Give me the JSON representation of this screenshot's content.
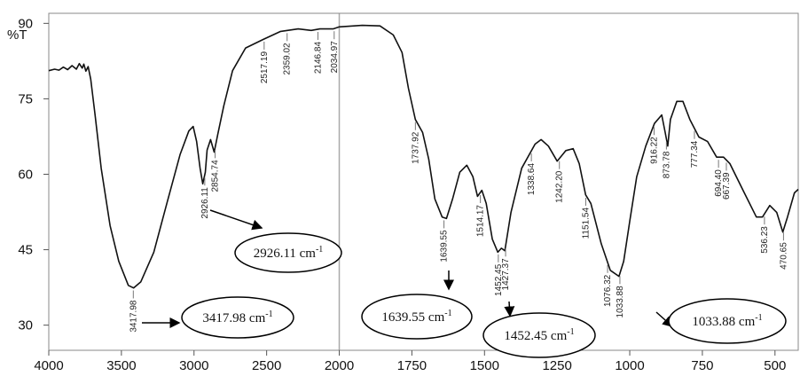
{
  "chart_data": {
    "type": "line",
    "y_label": "%T",
    "xlim": [
      4000,
      420
    ],
    "ylim": [
      25,
      92
    ],
    "xticks": [
      4000,
      3500,
      3000,
      2500,
      2000,
      1750,
      1500,
      1250,
      1000,
      750,
      500
    ],
    "yticks": [
      30,
      45,
      60,
      75,
      90
    ],
    "x_scale": "segmented",
    "series": [
      {
        "name": "%T",
        "color": "#111111",
        "x": [
          4000,
          3960,
          3930,
          3900,
          3870,
          3840,
          3810,
          3790,
          3770,
          3759,
          3745,
          3729,
          3711,
          3681,
          3639,
          3578,
          3518,
          3452,
          3416,
          3367,
          3277,
          3187,
          3096,
          3036,
          3006,
          2982,
          2958,
          2940,
          2922,
          2910,
          2886,
          2861,
          2837,
          2795,
          2735,
          2645,
          2524,
          2404,
          2283,
          2193,
          2133,
          2042,
          2000,
          1921,
          1860,
          1814,
          1784,
          1762,
          1738,
          1713,
          1692,
          1671,
          1646,
          1631,
          1610,
          1585,
          1561,
          1540,
          1524,
          1509,
          1494,
          1473,
          1454,
          1442,
          1430,
          1409,
          1372,
          1326,
          1305,
          1280,
          1250,
          1220,
          1195,
          1174,
          1152,
          1134,
          1098,
          1067,
          1037,
          1021,
          1000,
          976,
          945,
          915,
          890,
          878,
          869,
          860,
          838,
          817,
          793,
          762,
          732,
          701,
          677,
          655,
          610,
          564,
          543,
          518,
          494,
          473,
          457,
          433,
          420
        ],
        "values": [
          80.6,
          80.9,
          80.7,
          81.3,
          80.8,
          81.6,
          80.9,
          82.0,
          81.1,
          81.9,
          80.5,
          81.4,
          78.9,
          71.8,
          61.2,
          49.8,
          42.7,
          37.9,
          37.4,
          38.6,
          44.5,
          54.2,
          63.9,
          68.6,
          69.5,
          66.5,
          61.2,
          58.1,
          60.4,
          64.8,
          66.9,
          64.4,
          67.9,
          73.6,
          80.6,
          85.1,
          86.8,
          88.4,
          88.9,
          88.6,
          88.9,
          88.9,
          89.3,
          89.6,
          89.5,
          87.7,
          84.2,
          77.1,
          70.9,
          68.3,
          63.0,
          55.1,
          51.5,
          51.2,
          55.1,
          60.4,
          61.8,
          59.5,
          55.6,
          56.8,
          54.2,
          47.1,
          44.5,
          45.3,
          44.8,
          52.4,
          61.2,
          66.0,
          66.9,
          65.6,
          62.6,
          64.7,
          65.1,
          62.1,
          55.9,
          54.2,
          46.2,
          40.9,
          39.7,
          42.7,
          50.6,
          59.5,
          65.6,
          70.1,
          71.8,
          68.3,
          65.6,
          70.9,
          74.5,
          74.5,
          70.9,
          67.4,
          66.5,
          63.4,
          63.4,
          62.1,
          56.8,
          51.5,
          51.5,
          53.8,
          52.4,
          48.5,
          51.5,
          56.3,
          57.0
        ]
      }
    ],
    "peaks": [
      {
        "value": 3417.98,
        "label": "3417.98"
      },
      {
        "value": 2926.11,
        "label": "2926.11"
      },
      {
        "value": 2854.74,
        "label": "2854.74"
      },
      {
        "value": 2517.19,
        "label": "2517.19"
      },
      {
        "value": 2359.02,
        "label": "2359.02"
      },
      {
        "value": 2146.84,
        "label": "2146.84"
      },
      {
        "value": 2034.97,
        "label": "2034.97"
      },
      {
        "value": 1737.92,
        "label": "1737.92"
      },
      {
        "value": 1639.55,
        "label": "1639.55"
      },
      {
        "value": 1514.17,
        "label": "1514.17"
      },
      {
        "value": 1452.45,
        "label": "1452.45"
      },
      {
        "value": 1427.37,
        "label": "1427.37"
      },
      {
        "value": 1338.64,
        "label": "1338.64"
      },
      {
        "value": 1242.2,
        "label": "1242.20"
      },
      {
        "value": 1151.54,
        "label": "1151.54"
      },
      {
        "value": 1076.32,
        "label": "1076.32"
      },
      {
        "value": 1033.88,
        "label": "1033.88"
      },
      {
        "value": 916.22,
        "label": "916.22"
      },
      {
        "value": 873.78,
        "label": "873.78"
      },
      {
        "value": 777.34,
        "label": "777.34"
      },
      {
        "value": 694.4,
        "label": "694.40"
      },
      {
        "value": 667.39,
        "label": "667.39"
      },
      {
        "value": 536.23,
        "label": "536.23"
      },
      {
        "value": 470.65,
        "label": "470.65"
      }
    ],
    "callouts": [
      {
        "text": "2926.11 cm",
        "sup": "-1"
      },
      {
        "text": "3417.98 cm",
        "sup": "-1"
      },
      {
        "text": "1639.55 cm",
        "sup": "-1"
      },
      {
        "text": "1452.45 cm",
        "sup": "-1"
      },
      {
        "text": "1033.88 cm",
        "sup": "-1"
      }
    ]
  }
}
